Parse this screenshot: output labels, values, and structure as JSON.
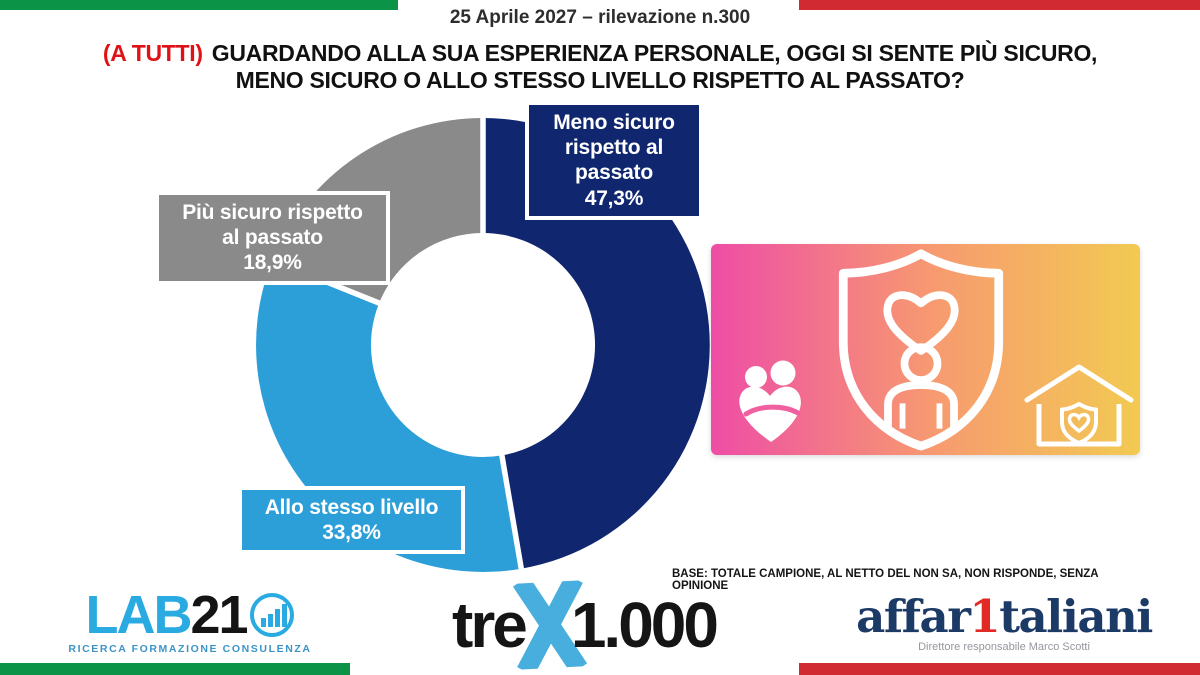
{
  "theme": {
    "flag_green": "#0b9347",
    "flag_red": "#d22a32",
    "question_red": "#e01217",
    "navy": "#10276f",
    "light_blue": "#2d9fd8",
    "slice_gray": "#8a8a8a",
    "lab21_blue": "#29abe2",
    "trex_blue": "#47aede",
    "affari_navy": "#1c3a66",
    "affari_red": "#e12a26",
    "gradient": [
      "#ee4da6",
      "#f79a70",
      "#f2ca52"
    ]
  },
  "header": {
    "date": "25 Aprile 2027",
    "mid": " – rilevazione n.",
    "number": "300"
  },
  "question": {
    "prefix": "(A TUTTI)",
    "line1": "GUARDANDO ALLA SUA ESPERIENZA PERSONALE, OGGI SI SENTE PIÙ SICURO,",
    "line2": "MENO SICURO O ALLO STESSO LIVELLO RISPETTO AL PASSATO?"
  },
  "chart_data": {
    "type": "pie",
    "subtype": "donut",
    "title": "",
    "unit": "%",
    "direction": "clockwise",
    "start_angle_deg": 0,
    "inner_radius_ratio": 0.49,
    "legend_position": "callout-boxes",
    "segments": [
      {
        "label": "Meno sicuro rispetto al passato",
        "value": 47.3,
        "display": "47,3%",
        "color": "#10276f",
        "label_lines": [
          "Meno sicuro",
          "rispetto al",
          "passato"
        ]
      },
      {
        "label": "Allo stesso livello",
        "value": 33.8,
        "display": "33,8%",
        "color": "#2d9fd8",
        "label_lines": [
          "Allo stesso livello"
        ]
      },
      {
        "label": "Più sicuro rispetto al passato",
        "value": 18.9,
        "display": "18,9%",
        "color": "#8a8a8a",
        "label_lines": [
          "Più sicuro rispetto",
          "al passato"
        ]
      }
    ]
  },
  "illustration": {
    "icons": [
      "family-heart-icon",
      "shield-person-heart-icon",
      "house-heart-icon"
    ]
  },
  "footer": {
    "base_note": "BASE: TOTALE CAMPIONE, AL NETTO DEL NON SA, NON RISPONDE, SENZA OPINIONE",
    "lab21": {
      "name_blue": "LAB",
      "name_black": "21",
      "mark_icon": "bar-chart-circle-icon",
      "tagline": "RICERCA FORMAZIONE CONSULENZA"
    },
    "trex": {
      "part1": "tre",
      "x_icon": "blue-x-mark",
      "part2": "1.000"
    },
    "affaritaliani": {
      "part1": "affar",
      "one": "1",
      "part2": "taliani",
      "subtitle": "Direttore responsabile Marco Scotti"
    }
  }
}
